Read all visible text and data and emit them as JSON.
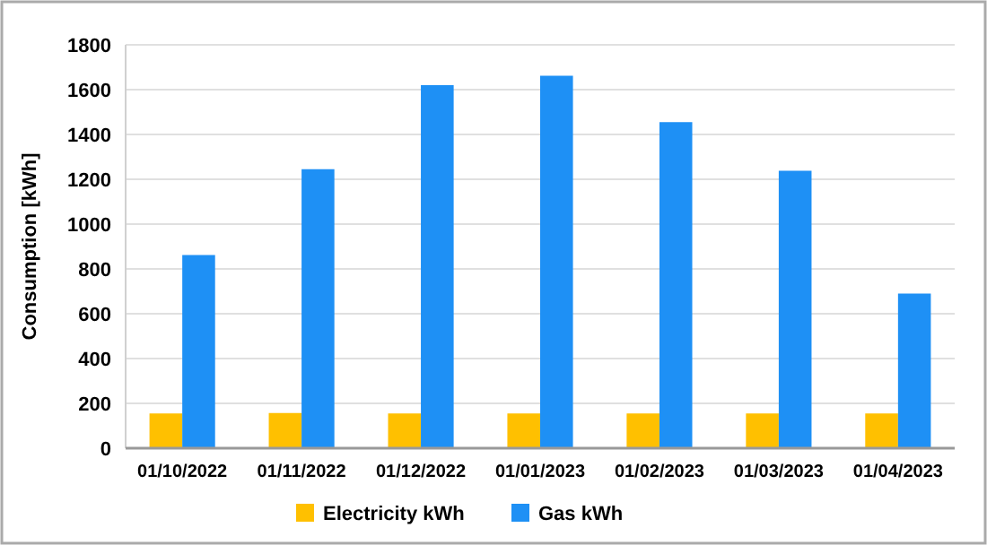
{
  "chart_data": {
    "type": "bar",
    "ylabel": "Consumption [kWh]",
    "categories": [
      "01/10/2022",
      "01/11/2022",
      "01/12/2022",
      "01/01/2023",
      "01/02/2023",
      "01/03/2023",
      "01/04/2023"
    ],
    "series": [
      {
        "name": "Electricity kWh",
        "color": "#ffc000",
        "values": [
          155,
          157,
          155,
          155,
          155,
          155,
          155
        ]
      },
      {
        "name": "Gas kWh",
        "color": "#1e90f5",
        "values": [
          862,
          1245,
          1620,
          1662,
          1455,
          1238,
          690
        ]
      }
    ],
    "ylim": [
      0,
      1800
    ],
    "yticks": [
      0,
      200,
      400,
      600,
      800,
      1000,
      1200,
      1400,
      1600,
      1800
    ],
    "grid": "y",
    "legend": "bottom"
  }
}
